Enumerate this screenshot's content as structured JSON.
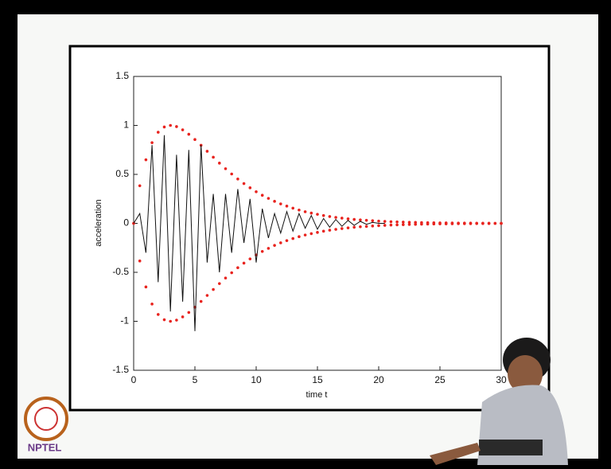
{
  "chart_data": {
    "type": "line",
    "xlabel": "time t",
    "ylabel": "acceleration",
    "xlim": [
      0,
      30
    ],
    "ylim": [
      -1.5,
      1.5
    ],
    "xticks": [
      0,
      5,
      10,
      15,
      20,
      25,
      30
    ],
    "yticks": [
      -1.5,
      -1,
      -0.5,
      0,
      0.5,
      1,
      1.5
    ],
    "x": [
      0,
      0.5,
      1,
      1.5,
      2,
      2.5,
      3,
      3.5,
      4,
      4.5,
      5,
      5.5,
      6,
      6.5,
      7,
      7.5,
      8,
      8.5,
      9,
      9.5,
      10,
      10.5,
      11,
      11.5,
      12,
      12.5,
      13,
      13.5,
      14,
      14.5,
      15,
      15.5,
      16,
      16.5,
      17,
      17.5,
      18,
      18.5,
      19,
      19.5,
      20,
      20.5,
      21,
      21.5,
      22,
      22.5,
      23,
      23.5,
      24,
      24.5,
      25,
      25.5,
      26,
      26.5,
      27,
      27.5,
      28,
      28.5,
      29,
      29.5,
      30
    ],
    "series": [
      {
        "color": "#e8231e",
        "style": "dots",
        "values": [
          0,
          0.384,
          0.649,
          0.824,
          0.93,
          0.984,
          1,
          0.988,
          0.955,
          0.91,
          0.856,
          0.797,
          0.736,
          0.675,
          0.615,
          0.558,
          0.504,
          0.453,
          0.406,
          0.363,
          0.323,
          0.287,
          0.255,
          0.225,
          0.199,
          0.176,
          0.155,
          0.136,
          0.119,
          0.105,
          0.092,
          0.08,
          0.07,
          0.061,
          0.053,
          0.046,
          0.04,
          0.035,
          0.031,
          0.027,
          0.023,
          0.02,
          0.017,
          0.015,
          0.013,
          0.011,
          0.01,
          0.008,
          0.007,
          0.006,
          0.005,
          0.005,
          0.004,
          0.003,
          0.003,
          0.003,
          0.002,
          0.002,
          0.002,
          0.001,
          0.001
        ]
      },
      {
        "color": "#e8231e",
        "style": "dots",
        "values": [
          0,
          -0.384,
          -0.649,
          -0.824,
          -0.93,
          -0.984,
          -1,
          -0.988,
          -0.955,
          -0.91,
          -0.856,
          -0.797,
          -0.736,
          -0.675,
          -0.615,
          -0.558,
          -0.504,
          -0.453,
          -0.406,
          -0.363,
          -0.323,
          -0.287,
          -0.255,
          -0.225,
          -0.199,
          -0.176,
          -0.155,
          -0.136,
          -0.119,
          -0.105,
          -0.092,
          -0.08,
          -0.07,
          -0.061,
          -0.053,
          -0.046,
          -0.04,
          -0.035,
          -0.031,
          -0.027,
          -0.023,
          -0.02,
          -0.017,
          -0.015,
          -0.013,
          -0.011,
          -0.01,
          -0.008,
          -0.007,
          -0.006,
          -0.005,
          -0.005,
          -0.004,
          -0.003,
          -0.003,
          -0.003,
          -0.002,
          -0.002,
          -0.002,
          -0.001,
          -0.001
        ]
      },
      {
        "color": "#111111",
        "style": "line",
        "values": [
          0,
          0.1,
          -0.3,
          0.8,
          -0.6,
          0.9,
          -0.9,
          0.7,
          -0.8,
          0.75,
          -1.1,
          0.8,
          -0.4,
          0.3,
          -0.5,
          0.3,
          -0.3,
          0.35,
          -0.2,
          0.25,
          -0.4,
          0.15,
          -0.15,
          0.1,
          -0.1,
          0.12,
          -0.08,
          0.1,
          -0.05,
          0.08,
          -0.06,
          0.05,
          -0.04,
          0.04,
          -0.03,
          0.03,
          -0.02,
          0.02,
          -0.01,
          0.01,
          0,
          0,
          null,
          null,
          null,
          null,
          null,
          null,
          null,
          null,
          null,
          null,
          null,
          null,
          null,
          null,
          null,
          null,
          null,
          null,
          null
        ]
      }
    ]
  },
  "logo": "NPTEL"
}
